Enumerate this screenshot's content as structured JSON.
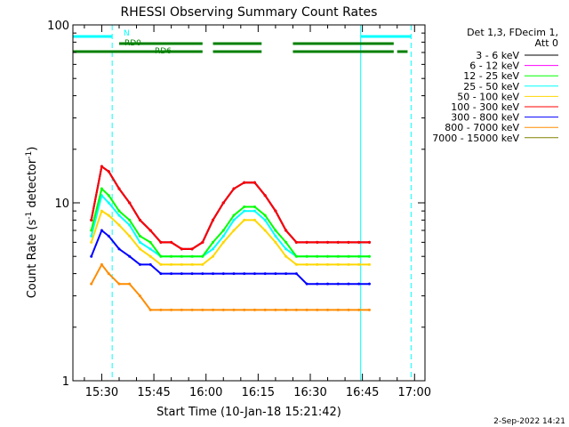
{
  "chart_data": {
    "type": "line",
    "title": "RHESSI Observing Summary Count Rates",
    "xlabel": "Start Time (10-Jan-18 15:21:42)",
    "ylabel": "Count Rate (s",
    "ylabel_sup": "-1",
    "ylabel_rest": " detector",
    "ylabel_sup2": "-1",
    "ylabel_end": ")",
    "y_scale": "log",
    "ylim": [
      1,
      100
    ],
    "y_ticks": [
      "1",
      "10",
      "100"
    ],
    "xlim": [
      "15:21:42",
      "17:03:00"
    ],
    "x_ticks": [
      "15:30",
      "15:45",
      "16:00",
      "16:15",
      "16:30",
      "16:45",
      "17:00"
    ],
    "x_tick_minutes": [
      930,
      945,
      960,
      975,
      990,
      1005,
      1020
    ],
    "legend_header": [
      "Det 1,3, FDecim 1,",
      "Att 0"
    ],
    "legend_position": "right",
    "timestamp": "2-Sep-2022 14:21",
    "series": [
      {
        "name": "3 - 6 keV",
        "color": "#000000",
        "minutes": [
          927,
          930,
          932,
          935,
          938,
          941,
          944,
          947,
          950,
          953,
          956,
          959,
          962,
          965,
          968,
          971,
          974,
          977,
          980,
          983,
          986,
          989,
          992,
          995,
          998,
          1001,
          1004,
          1007
        ],
        "values": [
          8,
          16,
          15,
          12,
          10,
          8,
          7,
          6,
          6,
          5.5,
          5.5,
          6,
          8,
          10,
          12,
          13,
          13,
          11,
          9,
          7,
          6,
          6,
          6,
          6,
          6,
          6,
          6,
          6
        ]
      },
      {
        "name": "6 - 12 keV",
        "color": "#ff00ff",
        "minutes": [
          927,
          930,
          932,
          935,
          938,
          941,
          944,
          947,
          950,
          953,
          956,
          959,
          962,
          965,
          968,
          971,
          974,
          977,
          980,
          983,
          986,
          989,
          992,
          995,
          998,
          1001,
          1004,
          1007
        ],
        "values": [
          8,
          16,
          15,
          12,
          10,
          8,
          7,
          6,
          6,
          5.5,
          5.5,
          6,
          8,
          10,
          12,
          13,
          13,
          11,
          9,
          7,
          6,
          6,
          6,
          6,
          6,
          6,
          6,
          6
        ]
      },
      {
        "name": "12 - 25 keV",
        "color": "#00ff00",
        "minutes": [
          927,
          930,
          932,
          935,
          938,
          941,
          944,
          947,
          950,
          953,
          956,
          959,
          962,
          965,
          968,
          971,
          974,
          977,
          980,
          983,
          986,
          989,
          992,
          995,
          998,
          1001,
          1004,
          1007
        ],
        "values": [
          7,
          12,
          11,
          9,
          8,
          6.5,
          6,
          5,
          5,
          5,
          5,
          5,
          6,
          7,
          8.5,
          9.5,
          9.5,
          8.5,
          7,
          6,
          5,
          5,
          5,
          5,
          5,
          5,
          5,
          5
        ]
      },
      {
        "name": "25 - 50 keV",
        "color": "#00ffff",
        "minutes": [
          927,
          930,
          932,
          935,
          938,
          941,
          944,
          947,
          950,
          953,
          956,
          959,
          962,
          965,
          968,
          971,
          974,
          977,
          980,
          983,
          986,
          989,
          992,
          995,
          998,
          1001,
          1004,
          1007
        ],
        "values": [
          6.5,
          11,
          10,
          8.5,
          7.5,
          6,
          5.5,
          5,
          5,
          5,
          5,
          5,
          5.5,
          6.5,
          8,
          9,
          9,
          8,
          6.5,
          5.5,
          5,
          5,
          5,
          5,
          5,
          5,
          5,
          5
        ]
      },
      {
        "name": "50 - 100 keV",
        "color": "#ffd700",
        "minutes": [
          927,
          930,
          932,
          935,
          938,
          941,
          944,
          947,
          950,
          953,
          956,
          959,
          962,
          965,
          968,
          971,
          974,
          977,
          980,
          983,
          986,
          989,
          992,
          995,
          998,
          1001,
          1004,
          1007
        ],
        "values": [
          6,
          9,
          8.5,
          7.5,
          6.5,
          5.5,
          5,
          4.5,
          4.5,
          4.5,
          4.5,
          4.5,
          5,
          6,
          7,
          8,
          8,
          7,
          6,
          5,
          4.5,
          4.5,
          4.5,
          4.5,
          4.5,
          4.5,
          4.5,
          4.5
        ]
      },
      {
        "name": "100 - 300 keV",
        "color": "#ff0000",
        "minutes": [
          927,
          930,
          932,
          935,
          938,
          941,
          944,
          947,
          950,
          953,
          956,
          959,
          962,
          965,
          968,
          971,
          974,
          977,
          980,
          983,
          986,
          989,
          992,
          995,
          998,
          1001,
          1004,
          1007
        ],
        "values": [
          8,
          16,
          15,
          12,
          10,
          8,
          7,
          6,
          6,
          5.5,
          5.5,
          6,
          8,
          10,
          12,
          13,
          13,
          11,
          9,
          7,
          6,
          6,
          6,
          6,
          6,
          6,
          6,
          6
        ]
      },
      {
        "name": "300 - 800 keV",
        "color": "#0000ff",
        "minutes": [
          927,
          930,
          932,
          935,
          938,
          941,
          944,
          947,
          950,
          953,
          956,
          959,
          962,
          965,
          968,
          971,
          974,
          977,
          980,
          983,
          986,
          989,
          992,
          995,
          998,
          1001,
          1004,
          1007
        ],
        "values": [
          5,
          7,
          6.5,
          5.5,
          5,
          4.5,
          4.5,
          4,
          4,
          4,
          4,
          4,
          4,
          4,
          4,
          4,
          4,
          4,
          4,
          4,
          4,
          3.5,
          3.5,
          3.5,
          3.5,
          3.5,
          3.5,
          3.5
        ]
      },
      {
        "name": "800 - 7000 keV",
        "color": "#ff8c00",
        "minutes": [
          927,
          930,
          932,
          935,
          938,
          941,
          944,
          947,
          950,
          953,
          956,
          959,
          962,
          965,
          968,
          971,
          974,
          977,
          980,
          983,
          986,
          989,
          992,
          995,
          998,
          1001,
          1004,
          1007
        ],
        "values": [
          3.5,
          4.5,
          4,
          3.5,
          3.5,
          3,
          2.5,
          2.5,
          2.5,
          2.5,
          2.5,
          2.5,
          2.5,
          2.5,
          2.5,
          2.5,
          2.5,
          2.5,
          2.5,
          2.5,
          2.5,
          2.5,
          2.5,
          2.5,
          2.5,
          2.5,
          2.5,
          2.5
        ]
      },
      {
        "name": "7000 - 15000 keV",
        "color": "#808000",
        "minutes": [],
        "values": []
      }
    ],
    "flags": [
      {
        "name": "N",
        "color": "#00ffff",
        "segments": [
          [
            921.7,
            933
          ],
          [
            1004.5,
            1019
          ]
        ]
      },
      {
        "name": "RD0",
        "color": "#008000",
        "segments": [
          [
            935,
            959
          ],
          [
            962,
            976
          ],
          [
            985,
            1014
          ]
        ]
      },
      {
        "name": "RD6",
        "color": "#008000",
        "segments": [
          [
            921.7,
            959
          ],
          [
            962,
            976
          ],
          [
            985,
            1014
          ],
          [
            1015,
            1018
          ]
        ]
      }
    ],
    "vertical_lines": [
      {
        "minute": 921.7,
        "style": "solid",
        "color": "#00ffff"
      },
      {
        "minute": 933,
        "style": "dashed",
        "color": "#00ffff"
      },
      {
        "minute": 1004.5,
        "style": "solid",
        "color": "#00ffff"
      },
      {
        "minute": 1019,
        "style": "dashed",
        "color": "#00ffff"
      }
    ]
  }
}
